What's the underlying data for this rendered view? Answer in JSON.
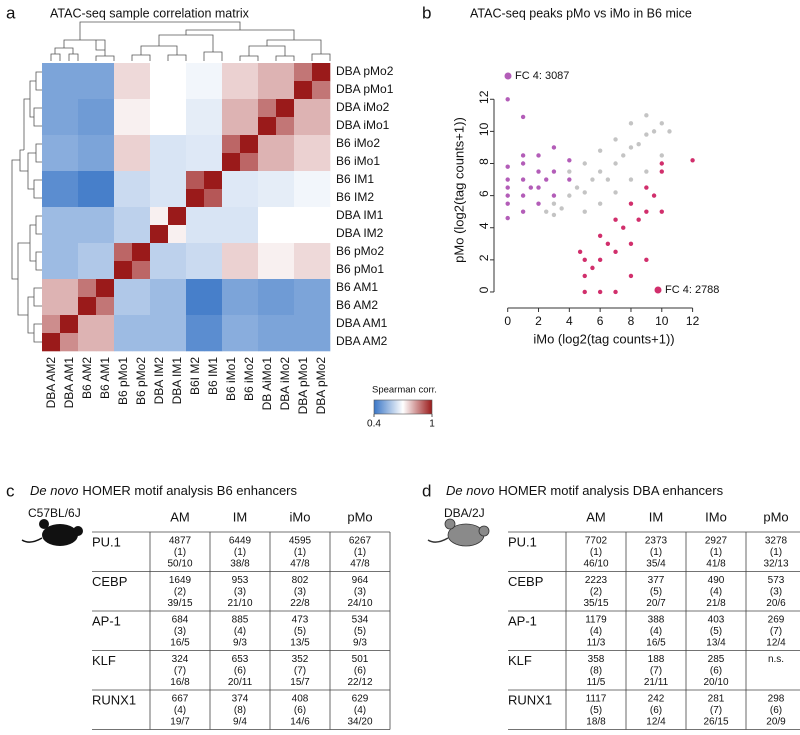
{
  "panel_labels": [
    "a",
    "b",
    "c",
    "d"
  ],
  "chart_data": [
    {
      "type": "heatmap",
      "title": "ATAC-seq sample correlation matrix",
      "rows": [
        "DBA pMo2",
        "DBA pMo1",
        "DBA iMo2",
        "DBA iMo1",
        "B6 iMo2",
        "B6  iMo1",
        "B6 IM1",
        "B6 IM2",
        "DBA IM1",
        "DBA IM2",
        "B6 pMo2",
        "B6 pMo1",
        "B6 AM1",
        "B6  AM2",
        "DBA AM1",
        "DBA AM2"
      ],
      "columns": [
        "DBA AM2",
        "DBA AM1",
        "B6  AM2",
        "B6 AM1",
        "B6  pMo1",
        "B6 pMo2",
        "DBA IM2",
        "DBA IM1",
        "B6I M2",
        "B6  IM1",
        "B6  iMo1",
        "B6  iMo2",
        "DB AiMo1",
        "DBA iMo2",
        "DBA pMo1",
        "DBA pMo2"
      ],
      "values": [
        [
          0.5,
          0.5,
          0.5,
          0.5,
          0.75,
          0.75,
          0.7,
          0.7,
          0.68,
          0.68,
          0.76,
          0.76,
          0.8,
          0.8,
          0.88,
          1
        ],
        [
          0.5,
          0.5,
          0.5,
          0.5,
          0.75,
          0.75,
          0.7,
          0.7,
          0.68,
          0.68,
          0.76,
          0.76,
          0.8,
          0.8,
          1,
          0.88
        ],
        [
          0.5,
          0.5,
          0.48,
          0.48,
          0.72,
          0.72,
          0.7,
          0.7,
          0.66,
          0.66,
          0.8,
          0.8,
          0.88,
          1,
          0.8,
          0.8
        ],
        [
          0.5,
          0.5,
          0.48,
          0.48,
          0.72,
          0.72,
          0.7,
          0.7,
          0.66,
          0.66,
          0.8,
          0.8,
          1,
          0.88,
          0.8,
          0.8
        ],
        [
          0.52,
          0.52,
          0.5,
          0.5,
          0.76,
          0.76,
          0.64,
          0.64,
          0.65,
          0.65,
          0.9,
          1,
          0.8,
          0.8,
          0.76,
          0.76
        ],
        [
          0.52,
          0.52,
          0.5,
          0.5,
          0.76,
          0.76,
          0.64,
          0.64,
          0.65,
          0.65,
          1,
          0.9,
          0.8,
          0.8,
          0.76,
          0.76
        ],
        [
          0.45,
          0.45,
          0.42,
          0.42,
          0.62,
          0.62,
          0.64,
          0.64,
          0.92,
          1,
          0.65,
          0.65,
          0.66,
          0.66,
          0.68,
          0.68
        ],
        [
          0.45,
          0.45,
          0.42,
          0.42,
          0.62,
          0.62,
          0.64,
          0.64,
          1,
          0.92,
          0.65,
          0.65,
          0.66,
          0.66,
          0.68,
          0.68
        ],
        [
          0.55,
          0.55,
          0.55,
          0.55,
          0.6,
          0.6,
          0.72,
          1,
          0.64,
          0.64,
          0.64,
          0.64,
          0.7,
          0.7,
          0.7,
          0.7
        ],
        [
          0.55,
          0.55,
          0.55,
          0.55,
          0.6,
          0.6,
          1,
          0.72,
          0.64,
          0.64,
          0.64,
          0.64,
          0.7,
          0.7,
          0.7,
          0.7
        ],
        [
          0.55,
          0.55,
          0.58,
          0.58,
          0.9,
          1,
          0.6,
          0.6,
          0.62,
          0.62,
          0.76,
          0.76,
          0.72,
          0.72,
          0.75,
          0.75
        ],
        [
          0.55,
          0.55,
          0.58,
          0.58,
          1,
          0.9,
          0.6,
          0.6,
          0.62,
          0.62,
          0.76,
          0.76,
          0.72,
          0.72,
          0.75,
          0.75
        ],
        [
          0.8,
          0.8,
          0.88,
          1,
          0.58,
          0.58,
          0.55,
          0.55,
          0.42,
          0.42,
          0.5,
          0.5,
          0.48,
          0.48,
          0.5,
          0.5
        ],
        [
          0.8,
          0.8,
          1,
          0.88,
          0.58,
          0.58,
          0.55,
          0.55,
          0.42,
          0.42,
          0.5,
          0.5,
          0.48,
          0.48,
          0.5,
          0.5
        ],
        [
          0.85,
          1,
          0.8,
          0.8,
          0.55,
          0.55,
          0.55,
          0.55,
          0.45,
          0.45,
          0.52,
          0.52,
          0.5,
          0.5,
          0.5,
          0.5
        ],
        [
          1,
          0.85,
          0.8,
          0.8,
          0.55,
          0.55,
          0.55,
          0.55,
          0.45,
          0.45,
          0.52,
          0.52,
          0.5,
          0.5,
          0.5,
          0.5
        ]
      ],
      "colorbar": {
        "title": "Spearman corr.",
        "lim": [
          0.4,
          1
        ],
        "ticks": [
          0.4,
          1
        ],
        "colors": [
          "#3a76c6",
          "#ffffff",
          "#9a1a1a"
        ]
      }
    },
    {
      "type": "scatter",
      "title": "ATAC-seq peaks pMo vs iMo in B6 mice",
      "xlabel": "iMo (log2(tag counts+1))",
      "ylabel": "pMo (log2(tag counts+1))",
      "xlim": [
        -0.5,
        13
      ],
      "ylim": [
        -0.5,
        13.2
      ],
      "xticks": [
        0,
        2,
        4,
        6,
        8,
        10,
        12
      ],
      "yticks": [
        0,
        2,
        4,
        6,
        8,
        10,
        12
      ],
      "series": [
        {
          "color": "#c4c4c4",
          "x": [
            2.5,
            3,
            3.5,
            4,
            4.5,
            5,
            5.5,
            6,
            6.5,
            7,
            7.5,
            8,
            8.5,
            9,
            9.5,
            10,
            5,
            6,
            7,
            8,
            9,
            10,
            4,
            5,
            6,
            7,
            3,
            8,
            9,
            10.5
          ],
          "y": [
            5,
            5.5,
            5.2,
            6,
            6.5,
            6.2,
            7,
            7.5,
            7,
            8,
            8.5,
            9,
            9.2,
            9.8,
            10,
            10.5,
            5,
            5.5,
            6.2,
            7,
            7.5,
            8.5,
            7.5,
            8,
            8.8,
            9.5,
            4.8,
            10.5,
            11,
            10
          ]
        },
        {
          "name": "FC 4: 3087",
          "color": "#b35db8",
          "x": [
            0,
            0,
            0,
            0,
            0,
            0,
            1,
            1,
            1,
            1,
            1,
            2,
            2,
            2,
            2,
            3,
            3,
            3,
            4,
            4,
            1,
            1.5,
            0,
            2.5
          ],
          "y": [
            4.6,
            5.5,
            6.5,
            7,
            7.8,
            12,
            5,
            6,
            7,
            8,
            10.9,
            5.5,
            6.5,
            7.5,
            8.5,
            6,
            7.5,
            9,
            7,
            8.2,
            8.5,
            6.5,
            6,
            7
          ]
        },
        {
          "name": "FC 4: 2788",
          "color": "#d12f6c",
          "x": [
            4.7,
            5,
            5,
            5,
            5.5,
            6,
            6,
            6,
            6.5,
            7,
            7,
            7,
            7.5,
            8,
            8,
            8,
            8.5,
            9,
            9,
            9,
            9.5,
            10,
            10,
            12,
            10
          ],
          "y": [
            2.5,
            0,
            1,
            2,
            1.5,
            0,
            2,
            3.5,
            3,
            0,
            2.5,
            4.5,
            4,
            1,
            3,
            5.5,
            4.5,
            2,
            5,
            6.5,
            6,
            5,
            7.5,
            8.2,
            8
          ]
        }
      ]
    }
  ],
  "tables": [
    {
      "title_italic": "De novo",
      "title": "HOMER motif analysis B6 enhancers",
      "strain": "C57BL/6J",
      "columns": [
        "AM",
        "IM",
        "iMo",
        "pMo"
      ],
      "rows": [
        {
          "label": "PU.1",
          "cells": [
            [
              "4877",
              "(1)",
              "50/10"
            ],
            [
              "6449",
              "(1)",
              "38/8"
            ],
            [
              "4595",
              "(1)",
              "47/8"
            ],
            [
              "6267",
              "(1)",
              "47/8"
            ]
          ]
        },
        {
          "label": "CEBP",
          "cells": [
            [
              "1649",
              "(2)",
              "39/15"
            ],
            [
              "953",
              "(3)",
              "21/10"
            ],
            [
              "802",
              "(3)",
              "22/8"
            ],
            [
              "964",
              "(3)",
              "24/10"
            ]
          ]
        },
        {
          "label": "AP-1",
          "cells": [
            [
              "684",
              "(3)",
              "16/5"
            ],
            [
              "885",
              "(4)",
              "9/3"
            ],
            [
              "473",
              "(5)",
              "13/5"
            ],
            [
              "534",
              "(5)",
              "9/3"
            ]
          ]
        },
        {
          "label": "KLF",
          "cells": [
            [
              "324",
              "(7)",
              "16/8"
            ],
            [
              "653",
              "(6)",
              "20/11"
            ],
            [
              "352",
              "(7)",
              "15/7"
            ],
            [
              "501",
              "(6)",
              "22/12"
            ]
          ]
        },
        {
          "label": "RUNX1",
          "cells": [
            [
              "667",
              "(4)",
              "19/7"
            ],
            [
              "374",
              "(8)",
              "9/4"
            ],
            [
              "408",
              "(6)",
              "14/6"
            ],
            [
              "629",
              "(4)",
              "34/20"
            ]
          ]
        }
      ]
    },
    {
      "title_italic": "De novo",
      "title": "HOMER motif analysis DBA enhancers",
      "strain": "DBA/2J",
      "columns": [
        "AM",
        "IM",
        "IMo",
        "pMo"
      ],
      "rows": [
        {
          "label": "PU.1",
          "cells": [
            [
              "7702",
              "(1)",
              "46/10"
            ],
            [
              "2373",
              "(1)",
              "35/4"
            ],
            [
              "2927",
              "(1)",
              "41/8"
            ],
            [
              "3278",
              "(1)",
              "32/13"
            ]
          ]
        },
        {
          "label": "CEBP",
          "cells": [
            [
              "2223",
              "(2)",
              "35/15"
            ],
            [
              "377",
              "(5)",
              "20/7"
            ],
            [
              "490",
              "(4)",
              "21/8"
            ],
            [
              "573",
              "(3)",
              "20/6"
            ]
          ]
        },
        {
          "label": "AP-1",
          "cells": [
            [
              "1179",
              "(4)",
              "11/3"
            ],
            [
              "388",
              "(4)",
              "16/5"
            ],
            [
              "403",
              "(5)",
              "13/4"
            ],
            [
              "269",
              "(7)",
              "12/4"
            ]
          ]
        },
        {
          "label": "KLF",
          "cells": [
            [
              "358",
              "(8)",
              "11/5"
            ],
            [
              "188",
              "(7)",
              "21/11"
            ],
            [
              "285",
              "(6)",
              "20/10"
            ],
            [
              "n.s."
            ]
          ]
        },
        {
          "label": "RUNX1",
          "cells": [
            [
              "1117",
              "(5)",
              "18/8"
            ],
            [
              "242",
              "(6)",
              "12/4"
            ],
            [
              "281",
              "(7)",
              "26/15"
            ],
            [
              "298",
              "(6)",
              "20/9"
            ]
          ]
        }
      ]
    }
  ]
}
